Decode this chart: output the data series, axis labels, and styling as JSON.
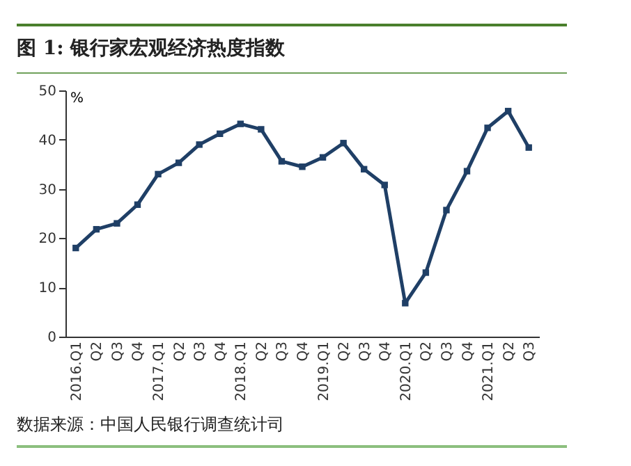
{
  "chart_data": {
    "type": "line",
    "title": "图 1: 银行家宏观经济热度指数",
    "ylabel": "%",
    "categories": [
      "2016.Q1",
      "Q2",
      "Q3",
      "Q4",
      "2017.Q1",
      "Q2",
      "Q3",
      "Q4",
      "2018.Q1",
      "Q2",
      "Q3",
      "Q4",
      "2019.Q1",
      "Q2",
      "Q3",
      "Q4",
      "2020.Q1",
      "Q2",
      "Q3",
      "Q4",
      "2021.Q1",
      "Q2",
      "Q3"
    ],
    "series": [
      {
        "color": "#1f3f66",
        "values": [
          18,
          21.8,
          23,
          26.8,
          33,
          35.3,
          39,
          41.2,
          43.2,
          42.1,
          35.6,
          34.5,
          36.4,
          39.3,
          34,
          30.8,
          6.8,
          13,
          25.7,
          33.6,
          42.4,
          45.8,
          38.4
        ]
      }
    ],
    "ylim": [
      0,
      50
    ],
    "yticks": [
      0,
      10,
      20,
      30,
      40,
      50
    ],
    "grid": false,
    "marker": "square",
    "line_style": "solid",
    "annotations": [
      "数据来源：中国人民银行调查统计司"
    ]
  }
}
